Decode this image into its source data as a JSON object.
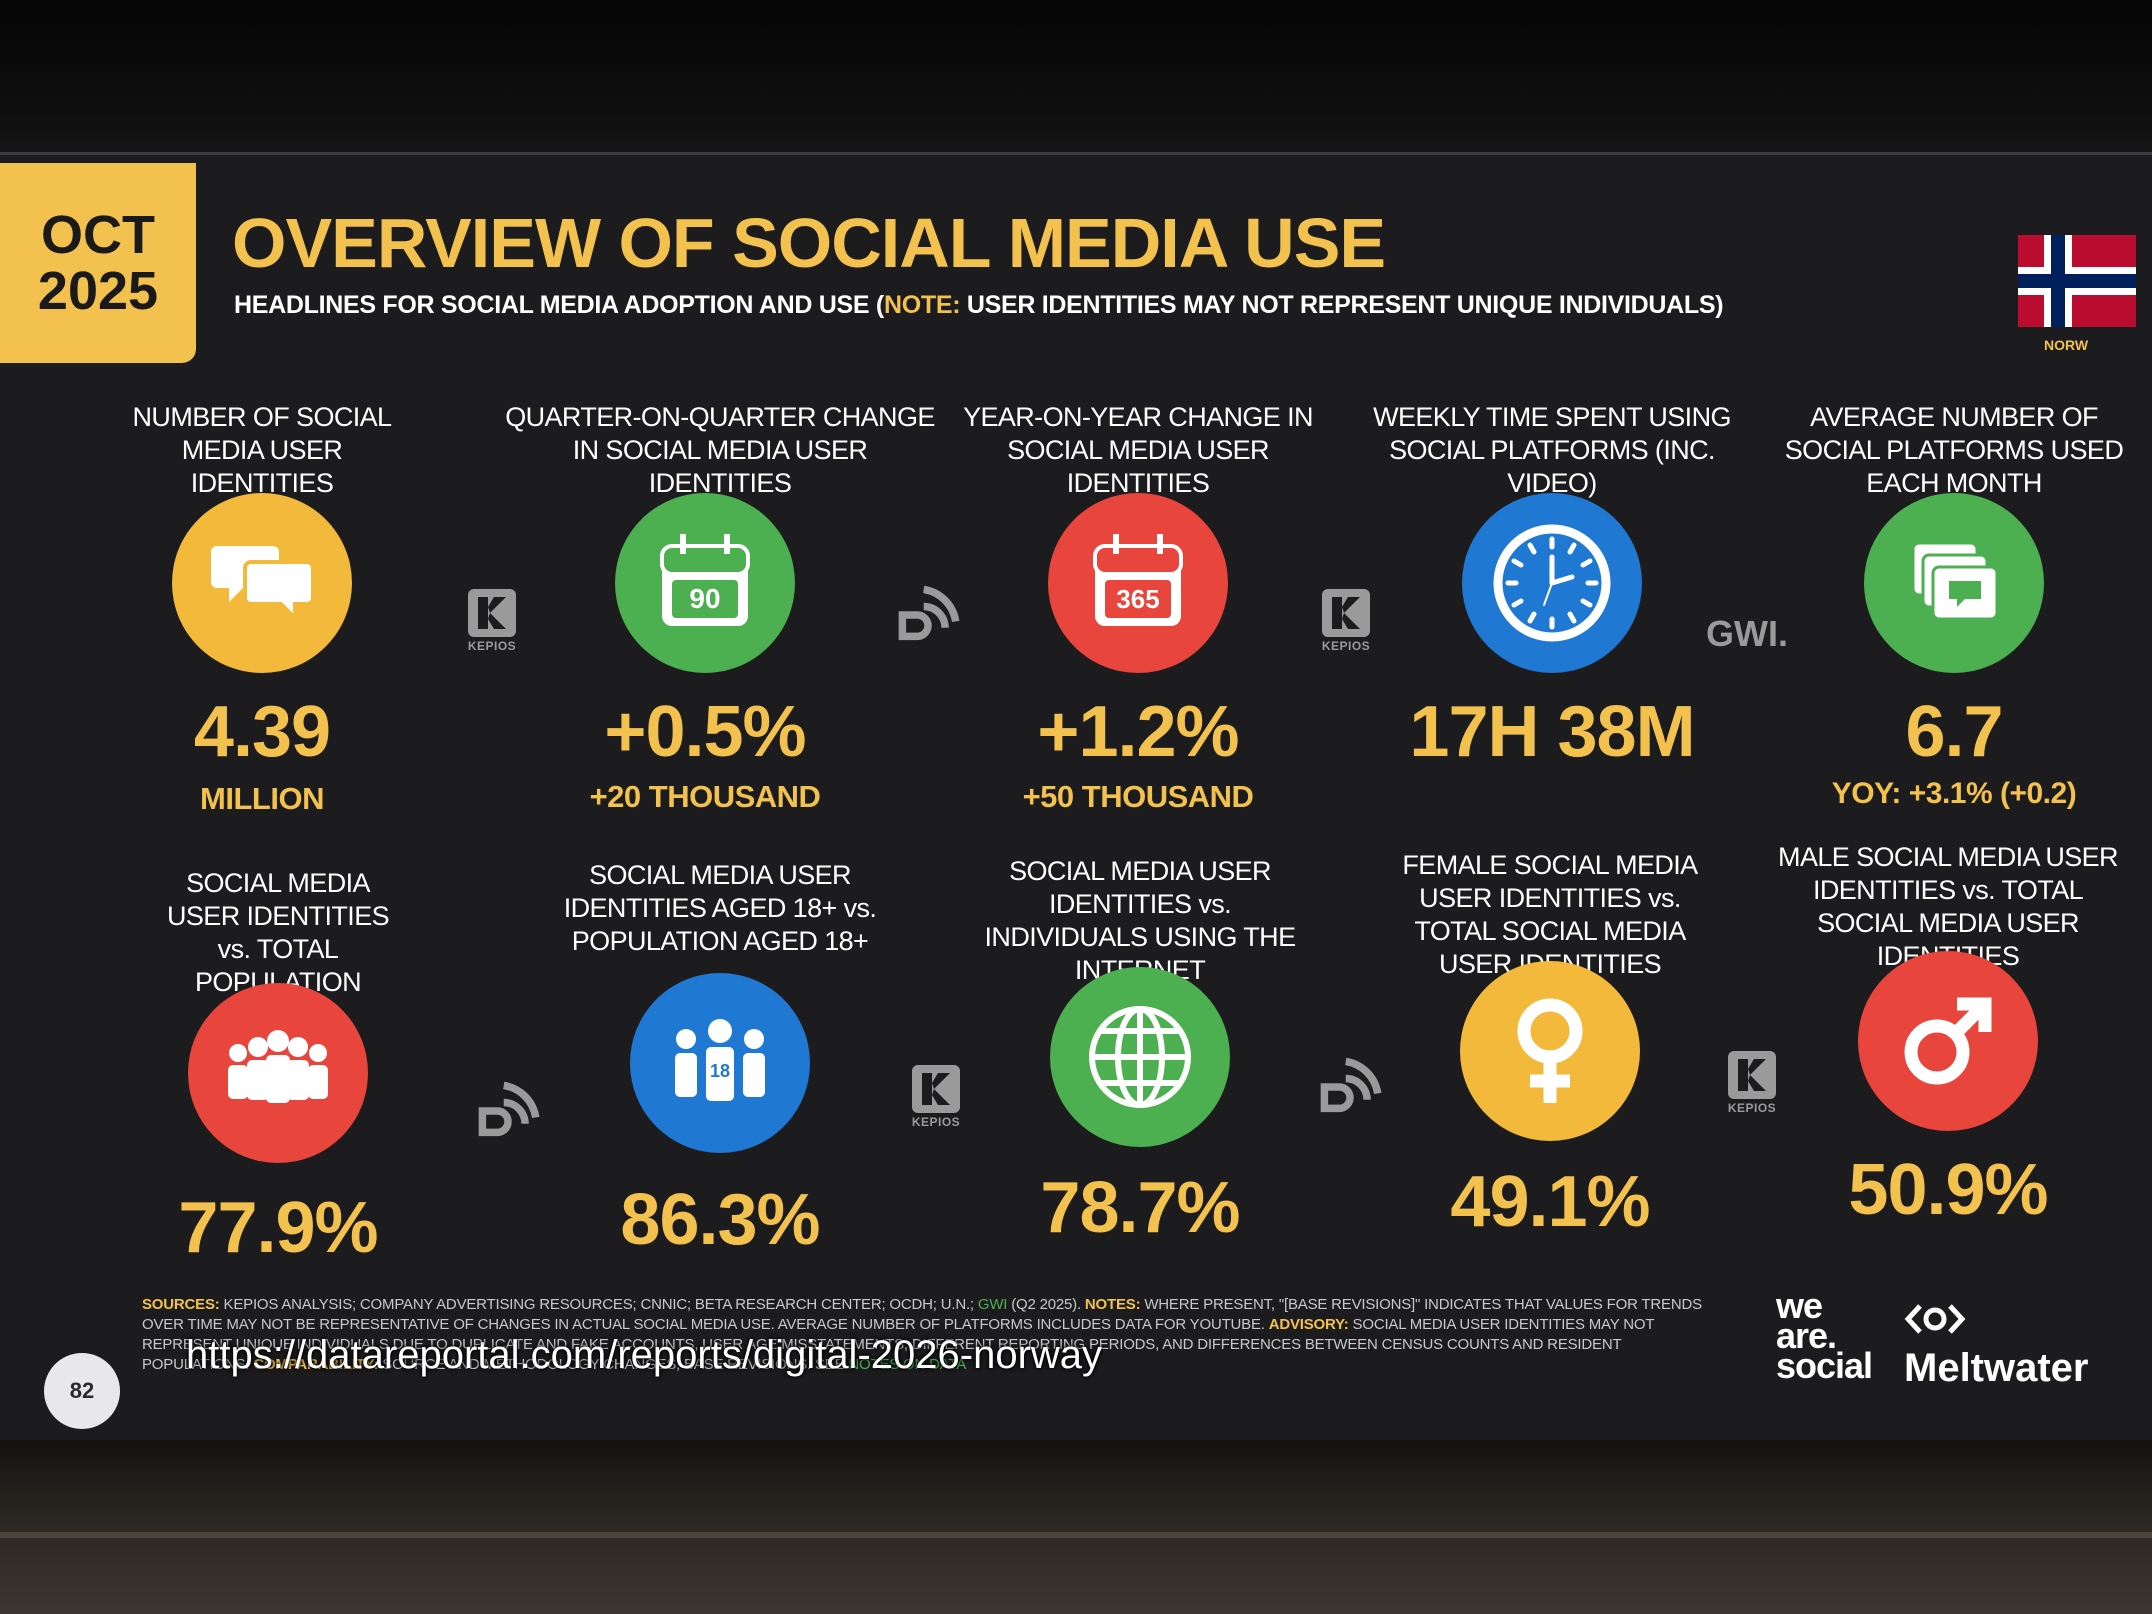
{
  "header": {
    "date_line1": "OCT",
    "date_line2": "2025",
    "title": "OVERVIEW OF SOCIAL MEDIA USE",
    "subtitle_part1": "HEADLINES FOR SOCIAL MEDIA ADOPTION AND USE (",
    "subtitle_note": "NOTE:",
    "subtitle_part2": " USER IDENTITIES MAY NOT REPRESENT UNIQUE INDIVIDUALS)",
    "country_label": "NORW"
  },
  "stats_row1": [
    {
      "label": "NUMBER OF SOCIAL MEDIA USER IDENTITIES",
      "value": "4.39",
      "sub": "MILLION",
      "icon": "speech-bubbles-icon",
      "color": "#f2b93b"
    },
    {
      "label": "QUARTER-ON-QUARTER CHANGE IN SOCIAL MEDIA USER IDENTITIES",
      "value": "+0.5%",
      "sub": "+20 THOUSAND",
      "icon": "calendar-90-icon",
      "icon_text": "90",
      "color": "#4caf50"
    },
    {
      "label": "YEAR-ON-YEAR CHANGE IN SOCIAL MEDIA USER IDENTITIES",
      "value": "+1.2%",
      "sub": "+50 THOUSAND",
      "icon": "calendar-365-icon",
      "icon_text": "365",
      "color": "#e8453c"
    },
    {
      "label": "WEEKLY TIME SPENT USING SOCIAL PLATFORMS (INC. VIDEO)",
      "value": "17H 38M",
      "sub": "",
      "icon": "clock-icon",
      "color": "#1f78d1"
    },
    {
      "label": "AVERAGE NUMBER OF SOCIAL PLATFORMS USED EACH MONTH",
      "value": "6.7",
      "sub": "YOY: +3.1% (+0.2)",
      "icon": "stacked-windows-icon",
      "color": "#4caf50"
    }
  ],
  "stats_row2": [
    {
      "label": "SOCIAL MEDIA USER IDENTITIES vs. TOTAL POPULATION",
      "value": "77.9%",
      "icon": "crowd-icon",
      "color": "#e8453c"
    },
    {
      "label": "SOCIAL MEDIA USER IDENTITIES AGED 18+ vs. POPULATION AGED 18+",
      "value": "86.3%",
      "icon": "adults-18-icon",
      "icon_text": "18",
      "color": "#1f78d1"
    },
    {
      "label": "SOCIAL MEDIA USER IDENTITIES vs. INDIVIDUALS USING THE INTERNET",
      "value": "78.7%",
      "icon": "globe-icon",
      "color": "#4caf50"
    },
    {
      "label": "FEMALE SOCIAL MEDIA USER IDENTITIES vs. TOTAL SOCIAL MEDIA USER IDENTITIES",
      "value": "49.1%",
      "icon": "female-icon",
      "color": "#f2b93b"
    },
    {
      "label": "MALE SOCIAL MEDIA USER IDENTITIES vs. TOTAL SOCIAL MEDIA USER IDENTITIES",
      "value": "50.9%",
      "icon": "male-icon",
      "color": "#e8453c"
    }
  ],
  "sources": {
    "kepios": "KEPIOS",
    "gwi": "GWI."
  },
  "footer": {
    "sources_label": "SOURCES:",
    "sources_text": " KEPIOS ANALYSIS; COMPANY ADVERTISING RESOURCES; CNNIC; BETA RESEARCH CENTER; OCDH; U.N.; ",
    "gwi_text": "GWI",
    "sources_text2": " (Q2 2025). ",
    "notes_label": "NOTES:",
    "notes_text": " WHERE PRESENT, \"[BASE REVISIONS]\" INDICATES THAT VALUES FOR TRENDS OVER TIME MAY NOT BE REPRESENTATIVE OF CHANGES IN ACTUAL SOCIAL MEDIA USE. AVERAGE NUMBER OF PLATFORMS INCLUDES DATA FOR YOUTUBE. ",
    "advisory_label": "ADVISORY:",
    "advisory_text": " SOCIAL MEDIA USER IDENTITIES MAY NOT REPRESENT UNIQUE INDIVIDUALS DUE TO DUPLICATE AND FAKE ACCOUNTS, USER AGE MISSTATEMENTS, DIFFERENT REPORTING PERIODS, AND DIFFERENCES BETWEEN CENSUS COUNTS AND RESIDENT POPULATIONS. ",
    "comparability_label": "COMPARABILITY:",
    "comparability_text": " SOURCE AND METHODOLOGY CHANGES; BASE REVISIONS. SEE ",
    "notes_on_data": "NOTES ON DATA",
    "url": "https://datareportal.com/reports/digital-2026-norway",
    "page_number": "82",
    "brand1_line1": "we",
    "brand1_line2": "are.",
    "brand1_line3": "social",
    "brand2": "Meltwater"
  }
}
